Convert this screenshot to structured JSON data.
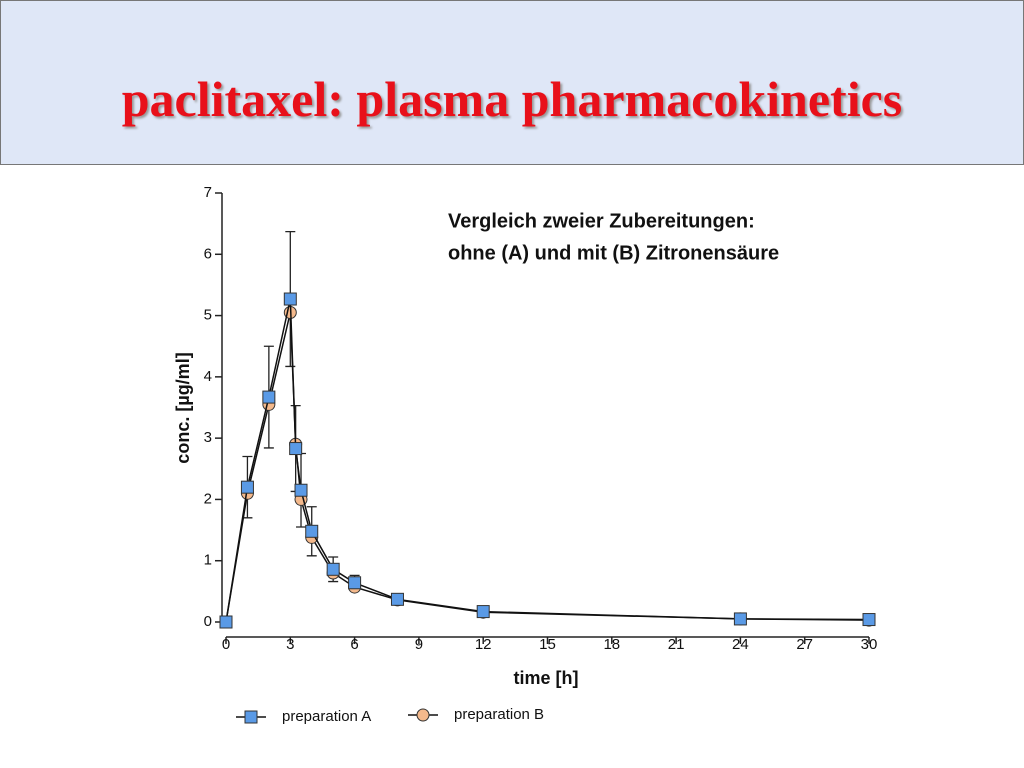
{
  "chart_data": {
    "type": "line",
    "title": "paclitaxel: plasma pharmacokinetics",
    "annotation": [
      "Vergleich zweier Zubereitungen:",
      "ohne (A) und mit (B) Zitronensäure"
    ],
    "x_label": "time [h]",
    "y_label": "conc. [µg/ml]",
    "x": [
      0,
      1,
      2,
      3,
      3.25,
      3.5,
      4,
      5,
      6,
      8,
      12,
      24,
      30
    ],
    "series": [
      {
        "name": "preparation A",
        "color": "#5a9ae6",
        "marker": "square",
        "values": [
          0,
          2.2,
          3.67,
          5.27,
          2.83,
          2.15,
          1.48,
          0.86,
          0.64,
          0.37,
          0.17,
          0.05,
          0.04
        ],
        "errors": [
          null,
          0.5,
          0.83,
          1.1,
          0.7,
          0.6,
          0.4,
          0.2,
          0.12,
          0.05,
          null,
          null,
          null
        ]
      },
      {
        "name": "preparation B",
        "color": "#f4b98c",
        "marker": "circle",
        "values": [
          0,
          2.1,
          3.55,
          5.05,
          2.9,
          2.0,
          1.38,
          0.8,
          0.57,
          0.36,
          0.16,
          0.05,
          0.03
        ]
      }
    ],
    "xlim": [
      0,
      30
    ],
    "xticks": [
      0,
      3,
      6,
      9,
      12,
      15,
      18,
      21,
      24,
      27,
      30
    ],
    "ylim": [
      0,
      7
    ],
    "yticks": [
      0,
      1,
      2,
      3,
      4,
      5,
      6,
      7
    ]
  }
}
